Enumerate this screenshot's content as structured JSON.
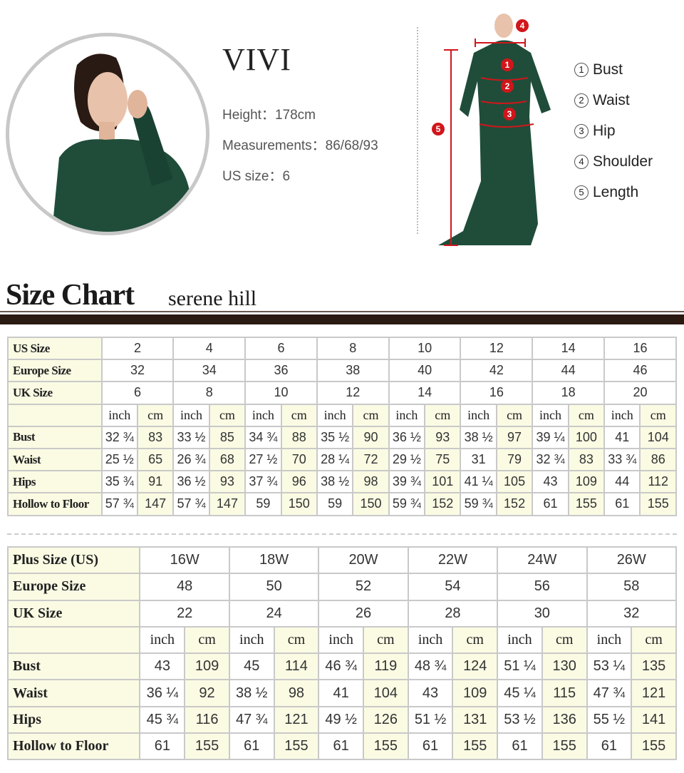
{
  "model": {
    "name": "VIVI",
    "height_label": "Height：",
    "height": "178cm",
    "measurements_label": "Measurements：",
    "measurements": "86/68/93",
    "us_size_label": "US size：",
    "us_size": "6"
  },
  "legend": [
    {
      "n": "1",
      "label": "Bust"
    },
    {
      "n": "2",
      "label": "Waist"
    },
    {
      "n": "3",
      "label": "Hip"
    },
    {
      "n": "4",
      "label": "Shoulder"
    },
    {
      "n": "5",
      "label": "Length"
    }
  ],
  "diagram_markers": [
    "1",
    "2",
    "3",
    "4",
    "5"
  ],
  "colors": {
    "dress": "#1f4d3a",
    "marker": "#d0161b",
    "rule": "#2b1a12",
    "cell_tint": "#fbfbe4"
  },
  "size_chart": {
    "title": "Size Chart",
    "subtitle": "serene hill"
  },
  "standard_table": {
    "header_rows": [
      {
        "label": "US Size",
        "values": [
          "2",
          "4",
          "6",
          "8",
          "10",
          "12",
          "14",
          "16"
        ]
      },
      {
        "label": "Europe Size",
        "values": [
          "32",
          "34",
          "36",
          "38",
          "40",
          "42",
          "44",
          "46"
        ]
      },
      {
        "label": "UK Size",
        "values": [
          "6",
          "8",
          "10",
          "12",
          "14",
          "16",
          "18",
          "20"
        ]
      }
    ],
    "units": [
      "inch",
      "cm"
    ],
    "rows": [
      {
        "label": "Bust",
        "values": [
          "32 ¾",
          "83",
          "33 ½",
          "85",
          "34 ¾",
          "88",
          "35 ½",
          "90",
          "36 ½",
          "93",
          "38 ½",
          "97",
          "39 ¼",
          "100",
          "41",
          "104"
        ]
      },
      {
        "label": "Waist",
        "values": [
          "25 ½",
          "65",
          "26 ¾",
          "68",
          "27 ½",
          "70",
          "28 ¼",
          "72",
          "29 ½",
          "75",
          "31",
          "79",
          "32 ¾",
          "83",
          "33 ¾",
          "86"
        ]
      },
      {
        "label": "Hips",
        "values": [
          "35 ¾",
          "91",
          "36 ½",
          "93",
          "37 ¾",
          "96",
          "38 ½",
          "98",
          "39 ¾",
          "101",
          "41 ¼",
          "105",
          "43",
          "109",
          "44",
          "112"
        ]
      },
      {
        "label": "Hollow to Floor",
        "values": [
          "57 ¾",
          "147",
          "57 ¾",
          "147",
          "59",
          "150",
          "59",
          "150",
          "59 ¾",
          "152",
          "59 ¾",
          "152",
          "61",
          "155",
          "61",
          "155"
        ]
      }
    ]
  },
  "plus_table": {
    "header_rows": [
      {
        "label": "Plus Size (US)",
        "values": [
          "16W",
          "18W",
          "20W",
          "22W",
          "24W",
          "26W"
        ]
      },
      {
        "label": "Europe Size",
        "values": [
          "48",
          "50",
          "52",
          "54",
          "56",
          "58"
        ]
      },
      {
        "label": "UK Size",
        "values": [
          "22",
          "24",
          "26",
          "28",
          "30",
          "32"
        ]
      }
    ],
    "units": [
      "inch",
      "cm"
    ],
    "rows": [
      {
        "label": "Bust",
        "values": [
          "43",
          "109",
          "45",
          "114",
          "46 ¾",
          "119",
          "48 ¾",
          "124",
          "51 ¼",
          "130",
          "53 ¼",
          "135"
        ]
      },
      {
        "label": "Waist",
        "values": [
          "36 ¼",
          "92",
          "38 ½",
          "98",
          "41",
          "104",
          "43",
          "109",
          "45 ¼",
          "115",
          "47 ¾",
          "121"
        ]
      },
      {
        "label": "Hips",
        "values": [
          "45 ¾",
          "116",
          "47 ¾",
          "121",
          "49 ½",
          "126",
          "51 ½",
          "131",
          "53 ½",
          "136",
          "55 ½",
          "141"
        ]
      },
      {
        "label": "Hollow to Floor",
        "values": [
          "61",
          "155",
          "61",
          "155",
          "61",
          "155",
          "61",
          "155",
          "61",
          "155",
          "61",
          "155"
        ]
      }
    ]
  }
}
